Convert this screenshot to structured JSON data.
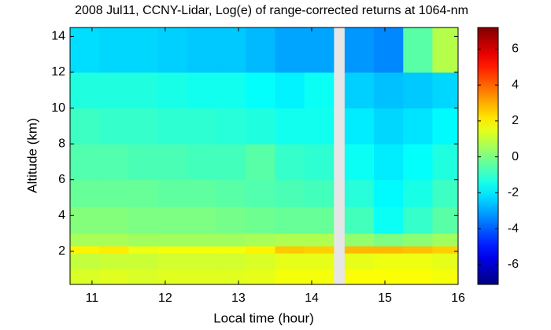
{
  "chart_data": {
    "type": "heatmap",
    "title": "2008 Jul11, CCNY-Lidar, Log(e) of range-corrected returns at 1064-nm",
    "xlabel": "Local time (hour)",
    "ylabel": "Altitude (km)",
    "colormap": "jet",
    "x_edges": [
      10.7,
      11.1,
      11.5,
      11.9,
      12.3,
      12.7,
      13.1,
      13.5,
      13.9,
      14.3,
      14.45,
      14.85,
      15.25,
      15.65,
      16.0
    ],
    "y_edges": [
      0.15,
      1,
      1.9,
      2.3,
      3,
      4.5,
      6,
      8,
      10,
      12,
      14.5
    ],
    "z": [
      [
        1.3,
        1.4,
        1.3,
        1.4,
        1.4,
        1.4,
        1.5,
        1.7,
        1.7,
        null,
        1.8,
        1.8,
        1.8,
        1.7
      ],
      [
        1.0,
        1.1,
        1.1,
        1.2,
        1.2,
        1.2,
        1.3,
        1.5,
        1.5,
        null,
        1.5,
        1.6,
        1.6,
        1.5
      ],
      [
        2.0,
        2.1,
        1.6,
        1.7,
        1.7,
        1.7,
        2.0,
        2.6,
        2.5,
        null,
        2.8,
        2.8,
        2.7,
        2.5
      ],
      [
        0.6,
        0.6,
        0.5,
        0.5,
        0.5,
        0.5,
        0.6,
        0.7,
        0.7,
        null,
        0.3,
        0.0,
        0.2,
        0.5
      ],
      [
        0.1,
        0.1,
        0.0,
        0.0,
        0.0,
        -0.1,
        -0.2,
        -0.3,
        -0.3,
        null,
        -0.8,
        -1.6,
        -1.0,
        -0.5
      ],
      [
        -0.3,
        -0.3,
        -0.3,
        -0.4,
        -0.4,
        -0.5,
        -0.6,
        -0.7,
        -0.8,
        null,
        -1.2,
        -1.8,
        -1.4,
        -0.9
      ],
      [
        -0.6,
        -0.6,
        -0.7,
        -0.7,
        -0.8,
        -0.8,
        -0.5,
        -1.0,
        -1.1,
        null,
        -1.6,
        -2.0,
        -1.7,
        -1.3
      ],
      [
        -0.9,
        -1.0,
        -1.0,
        -1.1,
        -1.1,
        -1.2,
        -1.3,
        -1.5,
        -1.5,
        null,
        -2.0,
        -2.3,
        -2.1,
        -1.8
      ],
      [
        -1.3,
        -1.3,
        -1.3,
        -1.4,
        -1.5,
        -1.5,
        -1.7,
        -1.9,
        -1.6,
        null,
        -2.4,
        -2.6,
        -2.5,
        -2.3
      ],
      [
        -2.2,
        -2.3,
        -2.3,
        -2.4,
        -2.5,
        -2.5,
        -2.7,
        -3.0,
        -3.0,
        null,
        -3.2,
        -3.4,
        -0.5,
        0.8
      ]
    ],
    "xlim": [
      10.7,
      16
    ],
    "ylim": [
      0.15,
      14.5
    ],
    "xticks": [
      11,
      12,
      13,
      14,
      15,
      16
    ],
    "yticks": [
      2,
      4,
      6,
      8,
      10,
      12,
      14
    ],
    "clim": [
      -7.1,
      7.2
    ],
    "cticks": [
      -6,
      -4,
      -2,
      0,
      2,
      4,
      6
    ]
  }
}
